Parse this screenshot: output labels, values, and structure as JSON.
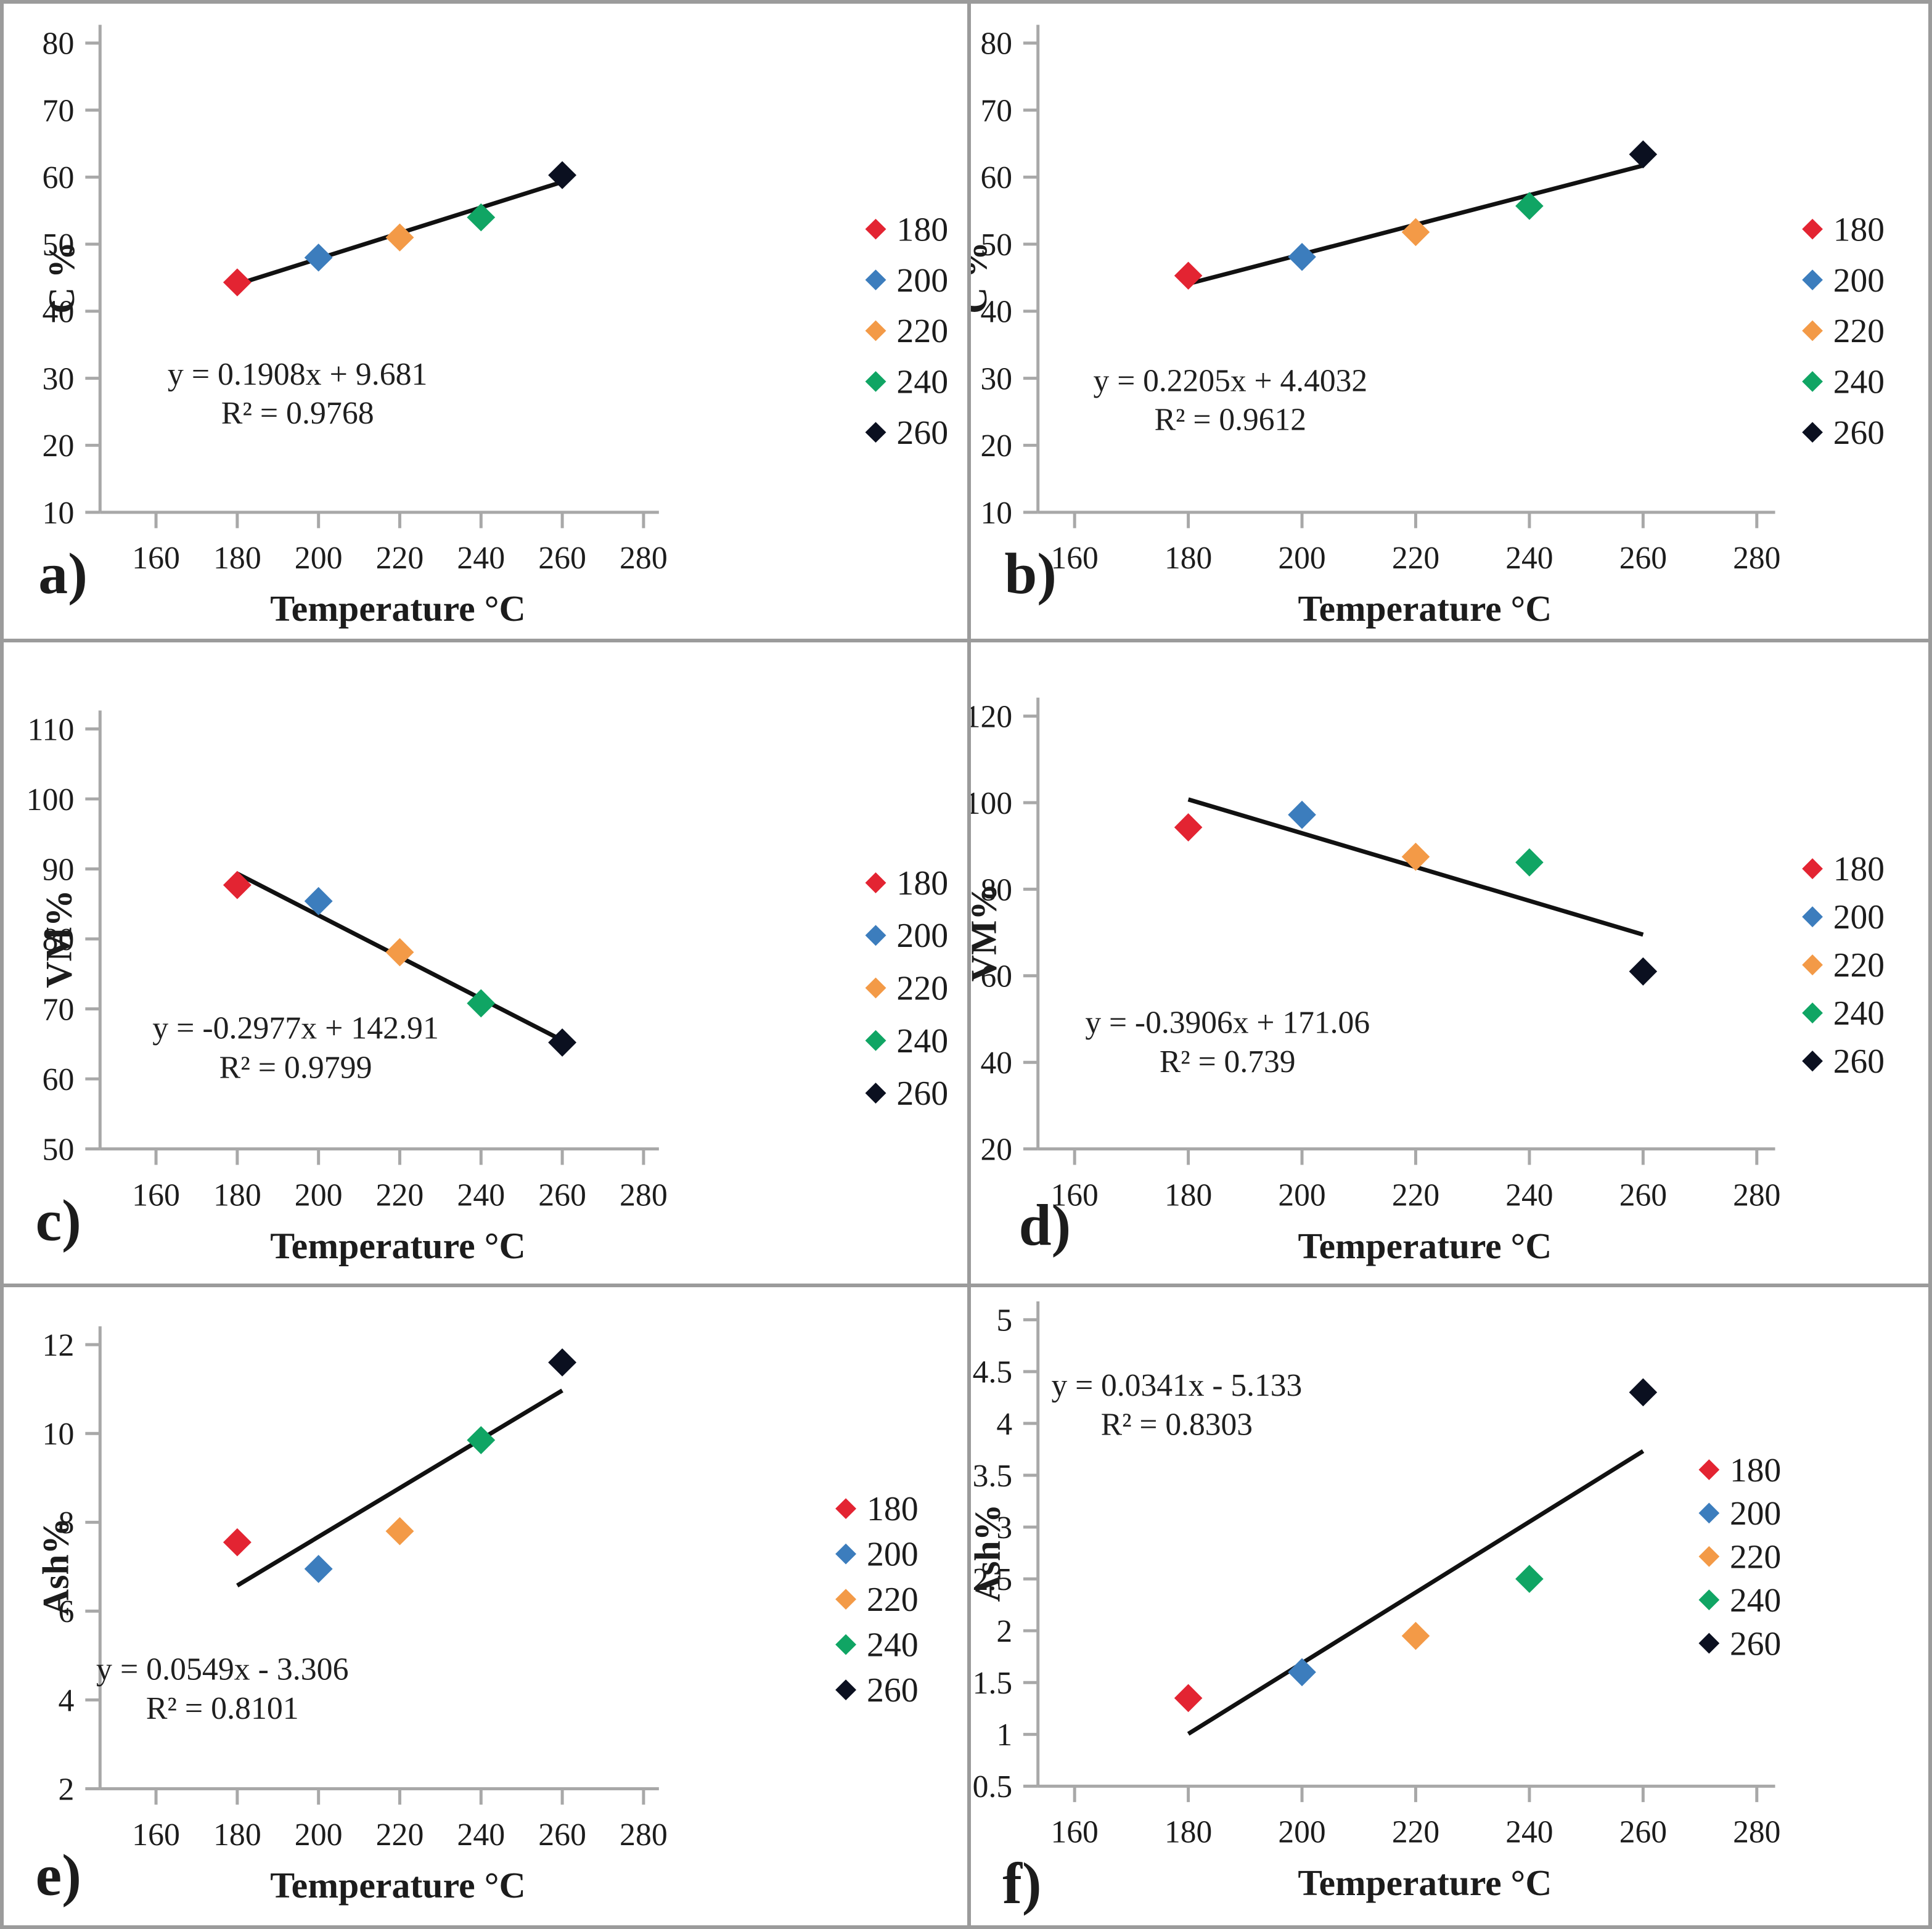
{
  "figure": {
    "xlabel": "Temperature °C",
    "x_ticks": [
      160,
      180,
      200,
      220,
      240,
      260,
      280
    ],
    "legend_labels": [
      "180",
      "200",
      "220",
      "240",
      "260"
    ],
    "series_colors": [
      "#e32432",
      "#3c7dbd",
      "#f39a47",
      "#10a564",
      "#0b1020"
    ],
    "axis_color": "#a8a8a8",
    "trend_color": "#111111"
  },
  "chart_data": [
    {
      "type": "scatter",
      "panel_letter": "a)",
      "ylabel": "C %",
      "xlabel": "Temperature °C",
      "x": [
        180,
        200,
        220,
        240,
        260
      ],
      "values": [
        44.3,
        48.0,
        51.0,
        54.0,
        60.3
      ],
      "series": [
        {
          "name": "180",
          "x": 180,
          "y": 44.3
        },
        {
          "name": "200",
          "x": 200,
          "y": 48.0
        },
        {
          "name": "220",
          "x": 220,
          "y": 51.0
        },
        {
          "name": "240",
          "x": 240,
          "y": 54.0
        },
        {
          "name": "260",
          "x": 260,
          "y": 60.3
        }
      ],
      "ylim": [
        10,
        80
      ],
      "yticks": [
        80,
        70,
        60,
        50,
        40,
        30,
        20,
        10
      ],
      "xlim": [
        160,
        280
      ],
      "equation": "y = 0.1908x + 9.681",
      "r_squared": "R² = 0.9768",
      "trend": {
        "slope": 0.1908,
        "intercept": 9.681,
        "x_start": 180,
        "x_end": 260
      },
      "legend_position": "right",
      "grid": false,
      "layout": {
        "col": 0,
        "axis_y": 0.801,
        "top_tick": 0.062,
        "eq": [
          0.305,
          0.6
        ],
        "legend": [
          0.905,
          0.355,
          0.08
        ],
        "letter": [
          0.036,
          0.928
        ],
        "ytitle_x": 0.073
      }
    },
    {
      "type": "scatter",
      "panel_letter": "b)",
      "ylabel": "C %",
      "xlabel": "Temperature °C",
      "x": [
        180,
        200,
        220,
        240,
        260
      ],
      "values": [
        45.3,
        48.1,
        51.8,
        55.7,
        63.4
      ],
      "series": [
        {
          "name": "180",
          "x": 180,
          "y": 45.3
        },
        {
          "name": "200",
          "x": 200,
          "y": 48.1
        },
        {
          "name": "220",
          "x": 220,
          "y": 51.8
        },
        {
          "name": "240",
          "x": 240,
          "y": 55.7
        },
        {
          "name": "260",
          "x": 260,
          "y": 63.4
        }
      ],
      "ylim": [
        10,
        80
      ],
      "yticks": [
        80,
        70,
        60,
        50,
        40,
        30,
        20,
        10
      ],
      "xlim": [
        160,
        280
      ],
      "equation": "y = 0.2205x + 4.4032",
      "r_squared": "R² = 0.9612",
      "trend": {
        "slope": 0.2205,
        "intercept": 4.4032,
        "x_start": 180,
        "x_end": 260
      },
      "legend_position": "right",
      "grid": false,
      "layout": {
        "col": 1,
        "axis_y": 0.801,
        "top_tick": 0.062,
        "eq": [
          0.271,
          0.61
        ],
        "legend": [
          0.879,
          0.355,
          0.08
        ],
        "letter": [
          0.035,
          0.928
        ],
        "ytitle_x": 0.016
      }
    },
    {
      "type": "scatter",
      "panel_letter": "c)",
      "ylabel": "VM%",
      "xlabel": "Temperature °C",
      "x": [
        180,
        200,
        220,
        240,
        260
      ],
      "values": [
        87.7,
        85.4,
        78.1,
        70.8,
        65.2
      ],
      "series": [
        {
          "name": "180",
          "x": 180,
          "y": 87.7
        },
        {
          "name": "200",
          "x": 200,
          "y": 85.4
        },
        {
          "name": "220",
          "x": 220,
          "y": 78.1
        },
        {
          "name": "240",
          "x": 240,
          "y": 70.8
        },
        {
          "name": "260",
          "x": 260,
          "y": 65.2
        }
      ],
      "ylim": [
        50,
        110
      ],
      "yticks": [
        110,
        100,
        90,
        80,
        70,
        60,
        50
      ],
      "xlim": [
        160,
        280
      ],
      "equation": "y = -0.2977x + 142.91",
      "r_squared": "R² = 0.9799",
      "trend": {
        "slope": -0.2977,
        "intercept": 142.91,
        "x_start": 180,
        "x_end": 260
      },
      "legend_position": "right",
      "grid": false,
      "layout": {
        "col": 0,
        "axis_y": 0.79,
        "top_tick": 0.135,
        "eq": [
          0.303,
          0.618
        ],
        "legend": [
          0.905,
          0.375,
          0.082
        ],
        "letter": [
          0.033,
          0.932
        ],
        "ytitle_x": 0.07
      }
    },
    {
      "type": "scatter",
      "panel_letter": "d)",
      "ylabel": "VM%",
      "xlabel": "Temperature °C",
      "x": [
        180,
        200,
        220,
        240,
        260
      ],
      "values": [
        94.3,
        97.2,
        87.5,
        86.2,
        61.0
      ],
      "series": [
        {
          "name": "180",
          "x": 180,
          "y": 94.3
        },
        {
          "name": "200",
          "x": 200,
          "y": 97.2
        },
        {
          "name": "220",
          "x": 220,
          "y": 87.5
        },
        {
          "name": "240",
          "x": 240,
          "y": 86.2
        },
        {
          "name": "260",
          "x": 260,
          "y": 61.0
        }
      ],
      "ylim": [
        20,
        120
      ],
      "yticks": [
        120,
        100,
        80,
        60,
        40,
        20
      ],
      "xlim": [
        160,
        280
      ],
      "equation": "y = -0.3906x + 171.06",
      "r_squared": "R² = 0.739",
      "trend": {
        "slope": -0.3906,
        "intercept": 171.06,
        "x_start": 180,
        "x_end": 260
      },
      "legend_position": "right",
      "grid": false,
      "layout": {
        "col": 1,
        "axis_y": 0.79,
        "top_tick": 0.115,
        "eq": [
          0.268,
          0.609
        ],
        "legend": [
          0.879,
          0.353,
          0.075
        ],
        "letter": [
          0.05,
          0.94
        ],
        "ytitle_x": 0.026
      }
    },
    {
      "type": "scatter",
      "panel_letter": "e)",
      "ylabel": "Ash%",
      "xlabel": "Temperature °C",
      "x": [
        180,
        200,
        220,
        240,
        260
      ],
      "values": [
        7.55,
        6.95,
        7.8,
        9.85,
        11.6
      ],
      "series": [
        {
          "name": "180",
          "x": 180,
          "y": 7.55
        },
        {
          "name": "200",
          "x": 200,
          "y": 6.95
        },
        {
          "name": "220",
          "x": 220,
          "y": 7.8
        },
        {
          "name": "240",
          "x": 240,
          "y": 9.85
        },
        {
          "name": "260",
          "x": 260,
          "y": 11.6
        }
      ],
      "ylim": [
        2,
        12
      ],
      "yticks": [
        12,
        10,
        8,
        6,
        4,
        2
      ],
      "xlim": [
        160,
        280
      ],
      "equation": "y = 0.0549x - 3.306",
      "r_squared": "R² = 0.8101",
      "trend": {
        "slope": 0.0549,
        "intercept": -3.306,
        "x_start": 180,
        "x_end": 260
      },
      "legend_position": "right",
      "grid": false,
      "layout": {
        "col": 0,
        "axis_y": 0.786,
        "top_tick": 0.09,
        "eq": [
          0.227,
          0.615
        ],
        "legend": [
          0.874,
          0.347,
          0.071
        ],
        "letter": [
          0.033,
          0.952
        ],
        "ytitle_x": 0.067
      }
    },
    {
      "type": "scatter",
      "panel_letter": "f)",
      "ylabel": "Ash%",
      "xlabel": "Temperature °C",
      "x": [
        180,
        200,
        220,
        240,
        260
      ],
      "values": [
        1.35,
        1.6,
        1.95,
        2.5,
        4.3
      ],
      "series": [
        {
          "name": "180",
          "x": 180,
          "y": 1.35
        },
        {
          "name": "200",
          "x": 200,
          "y": 1.6
        },
        {
          "name": "220",
          "x": 220,
          "y": 1.95
        },
        {
          "name": "240",
          "x": 240,
          "y": 2.5
        },
        {
          "name": "260",
          "x": 260,
          "y": 4.3
        }
      ],
      "ylim": [
        0.5,
        5
      ],
      "yticks": [
        5,
        4.5,
        4,
        3.5,
        3,
        2.5,
        2,
        1.5,
        1,
        0.5
      ],
      "xlim": [
        160,
        280
      ],
      "equation": "y = 0.0341x - 5.133",
      "r_squared": "R² = 0.8303",
      "trend": {
        "slope": 0.0341,
        "intercept": -5.133,
        "x_start": 180,
        "x_end": 260
      },
      "legend_position": "right",
      "grid": false,
      "layout": {
        "col": 1,
        "axis_y": 0.782,
        "top_tick": 0.051,
        "eq": [
          0.215,
          0.17
        ],
        "legend": [
          0.771,
          0.286,
          0.068
        ],
        "letter": [
          0.033,
          0.965
        ],
        "ytitle_x": 0.03
      }
    }
  ]
}
